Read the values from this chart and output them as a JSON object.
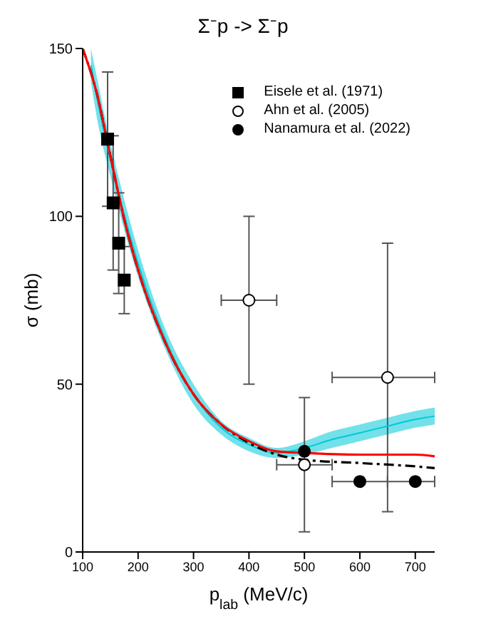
{
  "chart_data": {
    "type": "scatter",
    "title": "Σ⁻p -> Σ⁻p",
    "xlabel": "p$_{lab}$ (MeV/c)",
    "ylabel": "σ (mb)",
    "xlim": [
      100,
      735
    ],
    "ylim": [
      0,
      150
    ],
    "xticks": [
      100,
      200,
      300,
      400,
      500,
      600,
      700
    ],
    "yticks": [
      0,
      50,
      100,
      150
    ],
    "legend": "top right",
    "series": [
      {
        "name": "Eisele et al. (1971)",
        "marker": "square",
        "color": "#000000",
        "x": [
          145,
          155,
          165,
          175
        ],
        "values": [
          123,
          104,
          92,
          81
        ],
        "errors": [
          20,
          20,
          15,
          10
        ]
      },
      {
        "name": "Ahn et al. (2005)",
        "marker": "circle",
        "color": "#ffffff",
        "x": [
          400,
          500,
          650
        ],
        "values": [
          75,
          26,
          52
        ],
        "errors": [
          25,
          20,
          40
        ],
        "xerrors": [
          50,
          50,
          [
            550,
            735
          ]
        ]
      },
      {
        "name": "Nanamura et al. (2022)",
        "marker": "circle",
        "color": "#000000",
        "x": [
          500,
          600,
          700
        ],
        "values": [
          30,
          21,
          21
        ],
        "xerrors": [
          null,
          50,
          [
            650,
            735
          ]
        ]
      },
      {
        "type": "line",
        "color": "#00c8d8",
        "marker": "none",
        "x": [
          115,
          125,
          150,
          175,
          200,
          250,
          300,
          350,
          400,
          450,
          500,
          550,
          600,
          650,
          700,
          735
        ],
        "values": [
          145,
          136,
          117,
          100.5,
          86,
          63,
          47,
          37,
          32,
          29.5,
          31,
          33.5,
          35.5,
          37.5,
          39.5,
          40.5
        ],
        "lower": [
          140,
          130,
          112,
          96,
          82,
          60,
          44,
          35,
          30,
          28,
          29,
          31,
          33,
          35,
          37,
          38
        ],
        "upper": [
          150,
          142,
          122,
          105,
          90,
          66,
          50,
          39,
          34,
          31,
          33,
          36,
          38,
          40,
          42,
          43
        ]
      },
      {
        "type": "line",
        "color": "#000000",
        "marker": "none",
        "line_style": "dashed",
        "x": [
          100,
          125,
          150,
          175,
          200,
          250,
          300,
          350,
          400,
          450,
          500,
          600,
          700,
          735
        ],
        "values": [
          150,
          137,
          118,
          99,
          84,
          62,
          47,
          38,
          32.5,
          29,
          27.5,
          26.5,
          25.5,
          25
        ]
      },
      {
        "type": "line",
        "color": "#ff0000",
        "marker": "none",
        "line_style": "solid",
        "x": [
          100,
          125,
          150,
          175,
          200,
          250,
          300,
          350,
          400,
          450,
          500,
          600,
          700,
          735
        ],
        "values": [
          150,
          137,
          118,
          99,
          84,
          62,
          47,
          38,
          33,
          30,
          29.5,
          29,
          29,
          28.5
        ]
      }
    ]
  }
}
